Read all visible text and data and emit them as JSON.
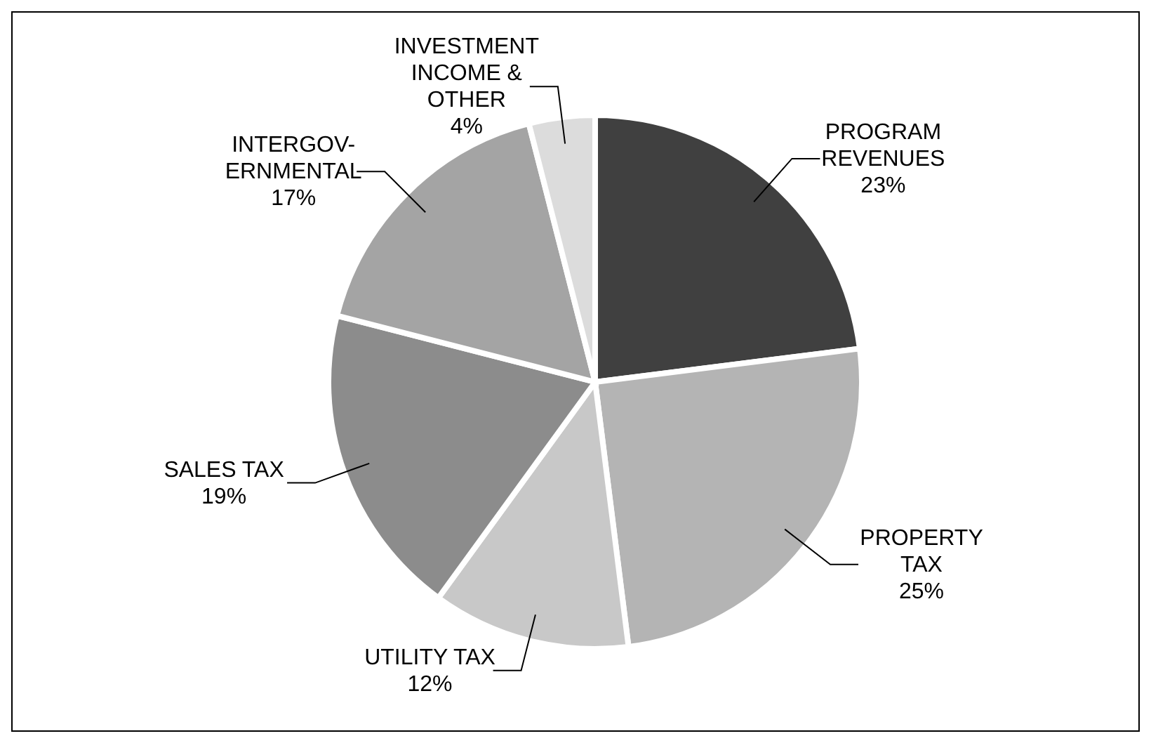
{
  "chart_data": {
    "type": "pie",
    "categories": [
      "PROGRAM\nREVENUES",
      "PROPERTY\nTAX",
      "UTILITY TAX",
      "SALES TAX",
      "INTERGOV-\nERNMENTAL",
      "INVESTMENT\nINCOME &\nOTHER"
    ],
    "values": [
      23,
      25,
      12,
      19,
      17,
      4
    ],
    "value_labels": [
      "23%",
      "25%",
      "12%",
      "19%",
      "17%",
      "4%"
    ],
    "colors": [
      "#404040",
      "#b4b4b4",
      "#c8c8c8",
      "#8c8c8c",
      "#a4a4a4",
      "#dcdcdc"
    ],
    "legend": false
  }
}
